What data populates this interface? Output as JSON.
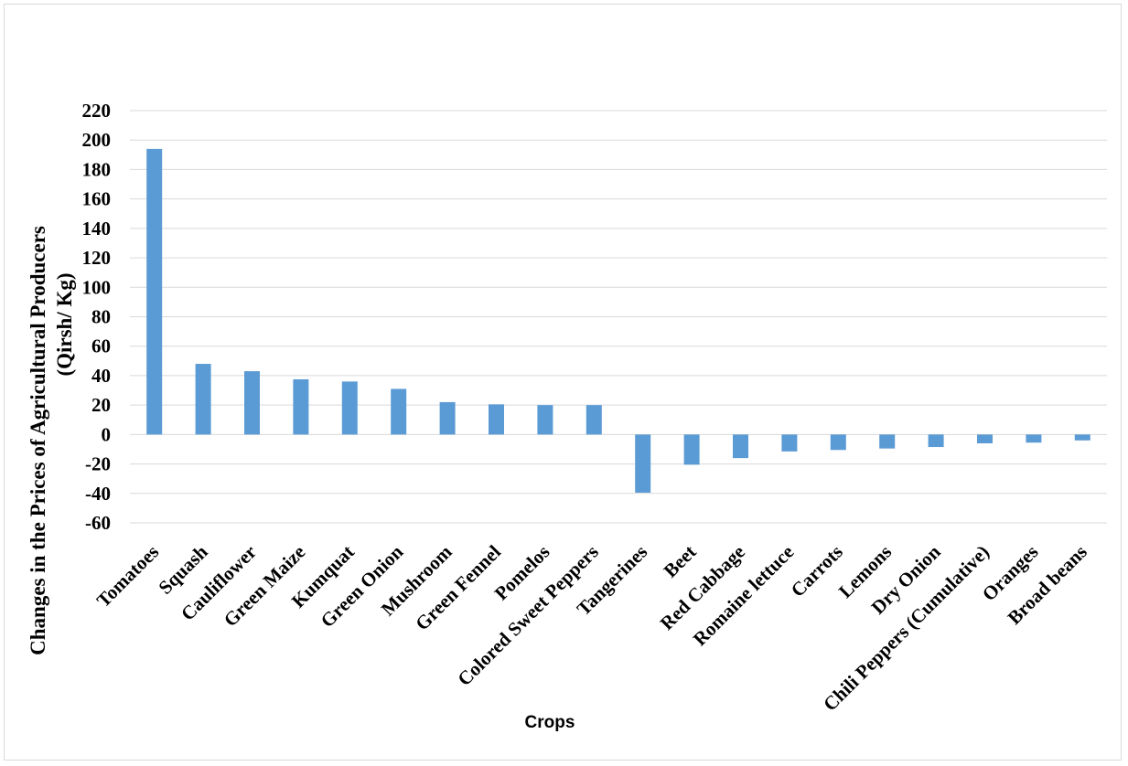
{
  "chart_data": {
    "type": "bar",
    "title": "",
    "xlabel": "Crops",
    "ylabel_line1": "Changes in the Prices of Agricultural Producers",
    "ylabel_line2": "(Qirsh/ Kg)",
    "ylim": [
      -60,
      220
    ],
    "yticks": [
      220,
      200,
      180,
      160,
      140,
      120,
      100,
      80,
      60,
      40,
      20,
      0,
      -20,
      -40,
      -60
    ],
    "grid": true,
    "legend": "none",
    "bar_color": "#5b9bd5",
    "categories": [
      "Tomatoes",
      "Squash",
      "Cauliflower",
      "Green Maize",
      "Kumquat",
      "Green Onion",
      "Mushroom",
      "Green Fennel",
      "Pomelos",
      "Colored Sweet Peppers",
      "Tangerines",
      "Beet",
      "Red Cabbage",
      "Romaine lettuce",
      "Carrots",
      "Lemons",
      "Dry Onion",
      "Chili Peppers (Cumulative)",
      "Oranges",
      "Broad beans"
    ],
    "values": [
      194,
      48,
      43,
      37.5,
      36,
      31,
      22,
      20.5,
      20,
      20,
      -39.5,
      -20.5,
      -16,
      -11.5,
      -10.5,
      -9.5,
      -8.5,
      -6,
      -5.5,
      -4
    ]
  }
}
